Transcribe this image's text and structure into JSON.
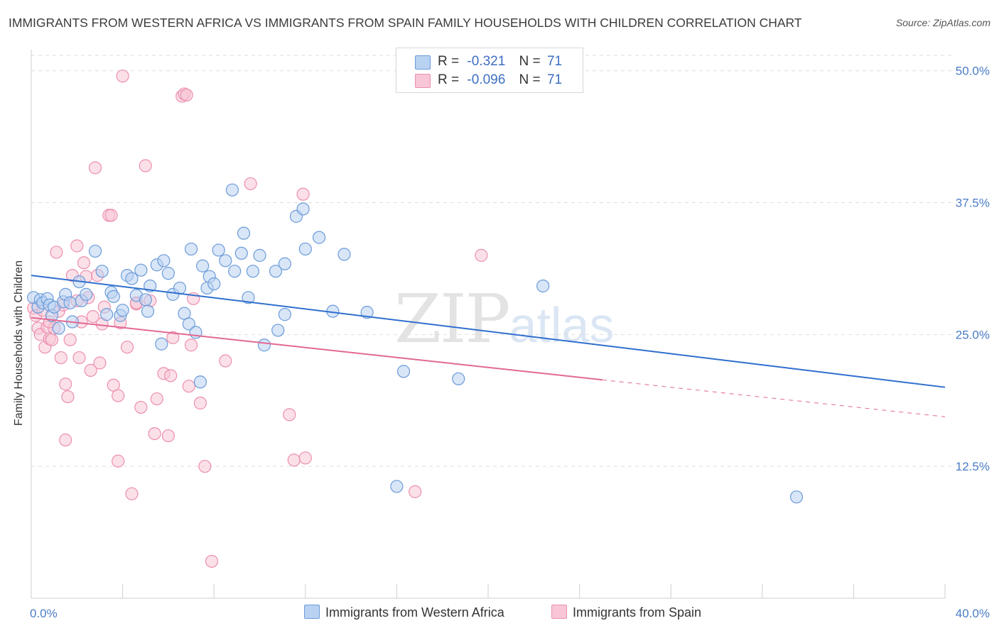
{
  "header": {
    "title": "IMMIGRANTS FROM WESTERN AFRICA VS IMMIGRANTS FROM SPAIN FAMILY HOUSEHOLDS WITH CHILDREN CORRELATION CHART",
    "source": "Source: ZipAtlas.com"
  },
  "watermark": {
    "zip": "ZIP",
    "atlas": "atlas"
  },
  "legend": {
    "rows": [
      {
        "r_label": "R =",
        "r_value": "-0.321",
        "n_label": "N =",
        "n_value": "71"
      },
      {
        "r_label": "R =",
        "r_value": "-0.096",
        "n_label": "N =",
        "n_value": "71"
      }
    ]
  },
  "colors": {
    "blue_fill": "#b9d2f2",
    "blue_stroke": "#6b9bd8",
    "blue_line": "#2f6fce",
    "pink_fill": "#f8c6d6",
    "pink_stroke": "#ec8fae",
    "pink_line": "#e26893"
  },
  "chart_data": {
    "type": "scatter",
    "title": "IMMIGRANTS FROM WESTERN AFRICA VS IMMIGRANTS FROM SPAIN FAMILY HOUSEHOLDS WITH CHILDREN CORRELATION CHART",
    "xlabel": "",
    "ylabel": "Family Households with Children",
    "xlim": [
      0,
      40
    ],
    "ylim": [
      0,
      52
    ],
    "x_tick_labels": [
      "0.0%",
      "40.0%"
    ],
    "y_ticks": [
      12.5,
      25.0,
      37.5,
      50.0
    ],
    "y_tick_labels": [
      "12.5%",
      "25.0%",
      "37.5%",
      "50.0%"
    ],
    "grid": "horizontal-dashed",
    "legend_position": "top-center",
    "series": [
      {
        "name": "Immigrants from Western Africa",
        "color": "#6b9bd8",
        "trend": {
          "x": [
            0,
            40
          ],
          "y": [
            30.6,
            20.0
          ],
          "dashed_from": null
        },
        "points": [
          [
            0.1,
            28.5
          ],
          [
            0.3,
            27.6
          ],
          [
            0.4,
            28.3
          ],
          [
            0.5,
            28.0
          ],
          [
            0.7,
            28.4
          ],
          [
            0.8,
            27.8
          ],
          [
            0.9,
            26.8
          ],
          [
            1.0,
            27.6
          ],
          [
            1.2,
            25.6
          ],
          [
            1.4,
            28.1
          ],
          [
            1.5,
            28.8
          ],
          [
            1.7,
            28.0
          ],
          [
            1.8,
            26.2
          ],
          [
            2.1,
            30.0
          ],
          [
            2.2,
            28.2
          ],
          [
            2.4,
            28.8
          ],
          [
            2.8,
            32.9
          ],
          [
            3.1,
            31.0
          ],
          [
            3.3,
            26.9
          ],
          [
            3.5,
            29.0
          ],
          [
            3.6,
            28.6
          ],
          [
            3.9,
            26.8
          ],
          [
            4.0,
            27.3
          ],
          [
            4.2,
            30.6
          ],
          [
            4.4,
            30.3
          ],
          [
            4.6,
            28.7
          ],
          [
            4.8,
            31.1
          ],
          [
            5.0,
            28.3
          ],
          [
            5.1,
            27.2
          ],
          [
            5.2,
            29.6
          ],
          [
            5.5,
            31.6
          ],
          [
            5.7,
            24.1
          ],
          [
            5.8,
            32.0
          ],
          [
            6.0,
            30.8
          ],
          [
            6.2,
            28.8
          ],
          [
            6.5,
            29.4
          ],
          [
            6.7,
            27.0
          ],
          [
            6.9,
            26.0
          ],
          [
            7.0,
            33.1
          ],
          [
            7.2,
            25.2
          ],
          [
            7.4,
            20.5
          ],
          [
            7.5,
            31.5
          ],
          [
            7.7,
            29.4
          ],
          [
            7.8,
            30.5
          ],
          [
            8.0,
            29.8
          ],
          [
            8.2,
            33.0
          ],
          [
            8.5,
            32.0
          ],
          [
            8.8,
            38.7
          ],
          [
            8.9,
            31.0
          ],
          [
            9.2,
            32.7
          ],
          [
            9.3,
            34.6
          ],
          [
            9.5,
            28.5
          ],
          [
            9.7,
            31.0
          ],
          [
            10.0,
            32.5
          ],
          [
            10.2,
            24.0
          ],
          [
            10.7,
            31.0
          ],
          [
            10.8,
            25.4
          ],
          [
            11.1,
            31.7
          ],
          [
            11.1,
            26.9
          ],
          [
            11.6,
            36.2
          ],
          [
            11.9,
            36.9
          ],
          [
            12.0,
            33.1
          ],
          [
            12.6,
            34.2
          ],
          [
            13.2,
            27.2
          ],
          [
            13.7,
            32.6
          ],
          [
            14.7,
            27.1
          ],
          [
            16.0,
            10.6
          ],
          [
            16.3,
            21.5
          ],
          [
            18.7,
            20.8
          ],
          [
            22.4,
            29.6
          ],
          [
            33.5,
            9.6
          ]
        ]
      },
      {
        "name": "Immigrants from Spain",
        "color": "#ec8fae",
        "trend": {
          "x": [
            0,
            25,
            40
          ],
          "y": [
            26.6,
            20.7,
            17.2
          ],
          "dashed_from": 25
        },
        "points": [
          [
            0.1,
            27.5
          ],
          [
            0.2,
            26.8
          ],
          [
            0.3,
            25.6
          ],
          [
            0.4,
            25.0
          ],
          [
            0.5,
            27.3
          ],
          [
            0.6,
            23.8
          ],
          [
            0.7,
            25.7
          ],
          [
            0.8,
            24.6
          ],
          [
            0.9,
            24.5
          ],
          [
            1.0,
            25.6
          ],
          [
            1.1,
            32.8
          ],
          [
            1.2,
            27.2
          ],
          [
            1.3,
            22.8
          ],
          [
            1.4,
            27.8
          ],
          [
            1.5,
            20.3
          ],
          [
            1.6,
            19.1
          ],
          [
            1.7,
            24.5
          ],
          [
            1.8,
            30.6
          ],
          [
            2.0,
            33.4
          ],
          [
            2.1,
            22.8
          ],
          [
            2.2,
            26.2
          ],
          [
            2.3,
            31.8
          ],
          [
            2.4,
            30.5
          ],
          [
            2.5,
            28.5
          ],
          [
            2.6,
            21.6
          ],
          [
            2.7,
            26.7
          ],
          [
            2.8,
            40.8
          ],
          [
            2.9,
            30.6
          ],
          [
            3.0,
            22.3
          ],
          [
            3.1,
            26.0
          ],
          [
            3.2,
            27.6
          ],
          [
            3.4,
            36.3
          ],
          [
            3.5,
            36.3
          ],
          [
            3.6,
            20.2
          ],
          [
            3.8,
            13.0
          ],
          [
            3.9,
            26.1
          ],
          [
            4.0,
            49.5
          ],
          [
            4.2,
            23.8
          ],
          [
            4.4,
            9.9
          ],
          [
            4.6,
            27.9
          ],
          [
            4.8,
            18.1
          ],
          [
            5.0,
            41.0
          ],
          [
            5.2,
            28.2
          ],
          [
            5.4,
            15.6
          ],
          [
            5.5,
            18.9
          ],
          [
            5.8,
            21.3
          ],
          [
            6.0,
            15.4
          ],
          [
            6.1,
            21.1
          ],
          [
            6.2,
            24.7
          ],
          [
            6.6,
            47.6
          ],
          [
            6.7,
            47.8
          ],
          [
            6.8,
            47.7
          ],
          [
            6.9,
            20.1
          ],
          [
            7.1,
            28.4
          ],
          [
            7.4,
            18.5
          ],
          [
            7.6,
            12.5
          ],
          [
            7.9,
            3.5
          ],
          [
            8.5,
            22.5
          ],
          [
            9.6,
            39.3
          ],
          [
            11.3,
            17.4
          ],
          [
            11.5,
            13.1
          ],
          [
            12.0,
            13.3
          ],
          [
            11.9,
            38.3
          ],
          [
            16.8,
            10.1
          ],
          [
            19.7,
            32.5
          ],
          [
            1.5,
            15.0
          ],
          [
            0.8,
            26.2
          ],
          [
            2.0,
            28.2
          ],
          [
            3.8,
            19.2
          ],
          [
            4.6,
            28.0
          ],
          [
            7.0,
            24.0
          ]
        ]
      }
    ]
  },
  "bottom_legend": {
    "items": [
      {
        "label": "Immigrants from Western Africa"
      },
      {
        "label": "Immigrants from Spain"
      }
    ]
  }
}
